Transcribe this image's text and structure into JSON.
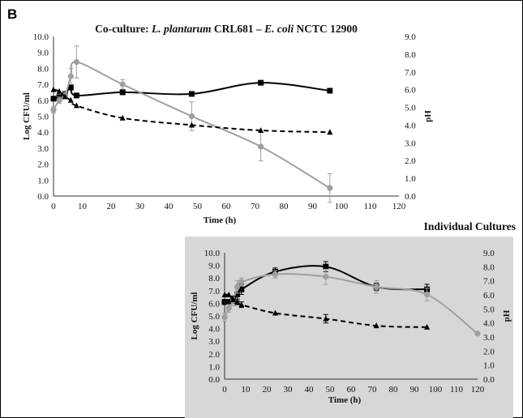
{
  "panel_label": "B",
  "colors": {
    "ecoli": "#000000",
    "plantarum": "#9f9f9f",
    "ph": "#000000",
    "inset_background": "#d7d7d7"
  },
  "chart_data": [
    {
      "type": "line",
      "title_parts": [
        {
          "text": "Co-culture:  ",
          "italic": false
        },
        {
          "text": "L. plantarum",
          "italic": true
        },
        {
          "text": " CRL681 – ",
          "italic": false
        },
        {
          "text": "E. coli",
          "italic": true
        },
        {
          "text": " NCTC 12900",
          "italic": false
        }
      ],
      "xlabel": "Time (h)",
      "ylabel": "Log  CFU/ml",
      "y2label": "pH",
      "xlim": [
        0,
        120
      ],
      "ylim": [
        0,
        10
      ],
      "y2lim": [
        0,
        9
      ],
      "x_ticks": [
        "0",
        "10",
        "20",
        "30",
        "40",
        "50",
        "60",
        "70",
        "80",
        "90",
        "100",
        "110",
        "120"
      ],
      "y_ticks": [
        "0.0",
        "1.0",
        "2.0",
        "3.0",
        "4.0",
        "5.0",
        "6.0",
        "7.0",
        "8.0",
        "9.0",
        "10.0"
      ],
      "y2_ticks": [
        "0.0",
        "1.0",
        "2.0",
        "3.0",
        "4.0",
        "5.0",
        "6.0",
        "7.0",
        "8.0",
        "9.0"
      ],
      "grid": false,
      "series": [
        {
          "axis": "left",
          "style": "solid",
          "marker": "square",
          "color": "#000000",
          "x": [
            0,
            2,
            4,
            6,
            8,
            24,
            48,
            72,
            96
          ],
          "y": [
            6.1,
            6.2,
            6.4,
            6.8,
            6.3,
            6.5,
            6.4,
            7.1,
            6.6
          ],
          "err": [
            0.1,
            0.1,
            0.1,
            0.1,
            0.1,
            0.1,
            0.1,
            0.1,
            0.1
          ]
        },
        {
          "axis": "left",
          "style": "solid",
          "marker": "circle",
          "color": "#9f9f9f",
          "x": [
            0,
            2,
            4,
            6,
            8,
            24,
            48,
            72,
            96
          ],
          "y": [
            5.4,
            6.0,
            6.3,
            7.5,
            8.4,
            7.0,
            5.0,
            3.1,
            0.5
          ],
          "err": [
            0.2,
            0.2,
            0.2,
            0.5,
            1.0,
            0.3,
            0.9,
            0.9,
            0.9
          ]
        },
        {
          "axis": "right",
          "style": "dashed",
          "marker": "triangle",
          "color": "#000000",
          "x": [
            0,
            2,
            4,
            6,
            8,
            24,
            48,
            72,
            96
          ],
          "y": [
            6.0,
            5.9,
            5.6,
            5.4,
            5.1,
            4.4,
            4.0,
            3.7,
            3.6
          ],
          "err": [
            0.1,
            0.1,
            0.1,
            0.1,
            0.1,
            0.1,
            0.1,
            0.1,
            0.1
          ]
        }
      ]
    },
    {
      "type": "line",
      "title_parts": [
        {
          "text": "Individual  Cultures",
          "italic": false
        }
      ],
      "xlabel": "Time (h)",
      "ylabel": "Log  CFU/ml",
      "y2label": "pH",
      "xlim": [
        0,
        120
      ],
      "ylim": [
        0,
        10
      ],
      "y2lim": [
        0,
        9
      ],
      "x_ticks": [
        "0",
        "10",
        "20",
        "30",
        "40",
        "50",
        "60",
        "70",
        "80",
        "90",
        "100",
        "110",
        "120"
      ],
      "y_ticks": [
        "0.0",
        "1.0",
        "2.0",
        "3.0",
        "4.0",
        "5.0",
        "6.0",
        "7.0",
        "8.0",
        "9.0",
        "10.0"
      ],
      "y2_ticks": [
        "0.0",
        "1.0",
        "2.0",
        "3.0",
        "4.0",
        "5.0",
        "6.0",
        "7.0",
        "8.0",
        "9.0"
      ],
      "grid": false,
      "series": [
        {
          "axis": "left",
          "style": "solid",
          "marker": "square",
          "color": "#000000",
          "x": [
            0,
            2,
            4,
            6,
            8,
            24,
            48,
            72,
            96
          ],
          "y": [
            6.1,
            6.1,
            6.3,
            6.7,
            7.1,
            8.5,
            8.9,
            7.3,
            7.1
          ],
          "err": [
            0.2,
            0.2,
            0.3,
            0.5,
            0.4,
            0.3,
            0.4,
            0.3,
            0.4
          ]
        },
        {
          "axis": "left",
          "style": "solid",
          "marker": "circle",
          "color": "#9f9f9f",
          "x": [
            0,
            2,
            4,
            6,
            8,
            24,
            48,
            72,
            96,
            120
          ],
          "y": [
            4.9,
            5.6,
            6.2,
            7.3,
            7.7,
            8.3,
            8.1,
            7.3,
            6.7,
            3.6
          ],
          "err": [
            0.3,
            0.3,
            0.4,
            0.5,
            0.3,
            0.3,
            0.6,
            0.5,
            0.5,
            0.1
          ]
        },
        {
          "axis": "right",
          "style": "dashed",
          "marker": "triangle",
          "color": "#000000",
          "x": [
            0,
            2,
            4,
            6,
            8,
            24,
            48,
            72,
            96
          ],
          "y": [
            6.0,
            6.0,
            5.7,
            5.5,
            5.3,
            4.7,
            4.3,
            3.8,
            3.7
          ],
          "err": [
            0.1,
            0.1,
            0.2,
            0.2,
            0.2,
            0.1,
            0.3,
            0.1,
            0.1
          ]
        }
      ]
    }
  ]
}
